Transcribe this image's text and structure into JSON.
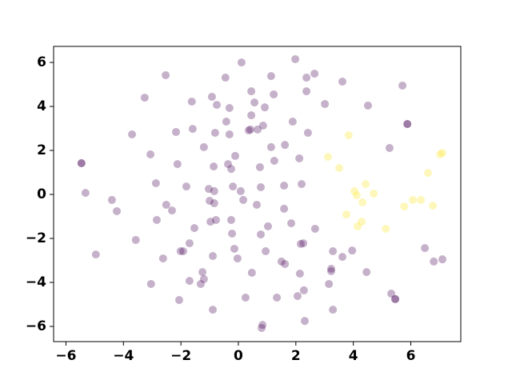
{
  "chart_data": {
    "type": "scatter",
    "xlim": [
      -6.43,
      7.74
    ],
    "ylim": [
      -6.69,
      6.73
    ],
    "xticks": [
      {
        "value": -6,
        "label": "−6"
      },
      {
        "value": -4,
        "label": "−4"
      },
      {
        "value": -2,
        "label": "−2"
      },
      0,
      2,
      4,
      6
    ],
    "yticks": [
      {
        "value": -6,
        "label": "−6"
      },
      {
        "value": -4,
        "label": "−4"
      },
      {
        "value": -2,
        "label": "−2"
      },
      0,
      2,
      4,
      6
    ],
    "grid": false,
    "series": [
      {
        "color": "#440154",
        "x": [
          -5.46,
          -5.46,
          -5.32,
          -4.96,
          -4.4,
          -4.23,
          -3.7,
          -3.57,
          -3.26,
          -3.06,
          -3.04,
          -2.87,
          -2.84,
          -2.62,
          -2.53,
          -2.51,
          -2.31,
          -2.17,
          -2.12,
          -2.06,
          -2.01,
          -1.92,
          -1.81,
          -1.7,
          -1.7,
          -1.62,
          -1.59,
          -1.53,
          -1.31,
          -1.25,
          -1.2,
          -1.2,
          -1.03,
          -1.0,
          -0.97,
          -0.92,
          -0.89,
          -0.89,
          -0.86,
          -0.84,
          -0.84,
          -0.78,
          -0.81,
          -0.75,
          -0.45,
          -0.42,
          -0.36,
          -0.31,
          -0.31,
          -0.25,
          -0.25,
          -0.22,
          -0.19,
          -0.14,
          -0.11,
          -0.03,
          0.08,
          0.11,
          0.17,
          0.25,
          0.36,
          0.42,
          0.45,
          0.45,
          0.47,
          0.56,
          0.64,
          0.67,
          0.75,
          0.78,
          0.86,
          0.78,
          0.81,
          0.84,
          0.92,
          0.95,
          1.03,
          1.14,
          1.14,
          1.23,
          1.25,
          1.34,
          1.5,
          1.59,
          1.59,
          1.62,
          1.62,
          1.84,
          1.89,
          1.98,
          2.06,
          2.12,
          2.14,
          2.2,
          2.17,
          2.26,
          2.28,
          2.31,
          2.37,
          2.37,
          2.42,
          2.65,
          2.67,
          3.01,
          3.15,
          3.23,
          3.23,
          3.29,
          3.29,
          3.62,
          3.62,
          3.96,
          4.46,
          4.51,
          5.26,
          5.32,
          5.46,
          5.46,
          5.71,
          5.88,
          5.88,
          6.49,
          6.8,
          7.1
        ],
        "values": [
          1.42,
          1.42,
          0.07,
          -2.73,
          -0.25,
          -0.76,
          2.73,
          -2.07,
          4.4,
          1.82,
          -4.07,
          0.51,
          -1.16,
          -2.91,
          5.42,
          -0.47,
          -0.73,
          2.84,
          1.38,
          -4.8,
          -2.58,
          -2.58,
          0.36,
          -2.22,
          -3.93,
          4.22,
          2.98,
          -1.53,
          -4.07,
          -3.53,
          -3.85,
          2.15,
          0.25,
          -0.29,
          -1.24,
          4.44,
          -2.8,
          -5.24,
          1.27,
          0.15,
          -0.4,
          -1.16,
          2.8,
          4.07,
          5.31,
          3.31,
          1.38,
          3.93,
          2.73,
          1.16,
          -1.16,
          -1.78,
          0.36,
          -2.47,
          1.75,
          -2.91,
          0.15,
          6.0,
          -0.25,
          -4.69,
          2.91,
          2.95,
          3.6,
          4.69,
          -3.56,
          4.18,
          -0.47,
          2.95,
          1.24,
          0.33,
          3.13,
          -1.82,
          -6.07,
          -5.93,
          3.96,
          -2.58,
          -1.45,
          2.15,
          5.38,
          4.55,
          1.53,
          -4.69,
          -3.05,
          0.4,
          -0.65,
          -3.16,
          2.25,
          -1.31,
          3.31,
          6.15,
          -4.62,
          1.64,
          -3.6,
          0.47,
          -2.25,
          -2.22,
          -4.36,
          -5.75,
          5.31,
          4.69,
          2.8,
          5.49,
          -1.56,
          4.11,
          -4.07,
          -3.38,
          -3.49,
          -2.58,
          -5.24,
          5.13,
          -2.84,
          -2.55,
          -3.53,
          4.04,
          2.11,
          -4.51,
          -4.76,
          -4.76,
          4.95,
          3.2,
          3.2,
          -2.44,
          -3.05,
          -2.95
        ]
      },
      {
        "color": "#fde725",
        "x": [
          3.12,
          3.51,
          3.84,
          3.76,
          4.04,
          4.12,
          4.15,
          4.29,
          4.32,
          4.43,
          4.71,
          5.13,
          5.77,
          6.07,
          6.35,
          6.6,
          6.77,
          7.02,
          7.1
        ],
        "values": [
          1.71,
          1.2,
          2.69,
          -0.91,
          0.15,
          -0.04,
          -1.45,
          -1.24,
          -0.36,
          0.47,
          0.04,
          -1.56,
          -0.55,
          -0.25,
          -0.25,
          0.98,
          -0.51,
          1.82,
          1.89
        ]
      }
    ]
  }
}
